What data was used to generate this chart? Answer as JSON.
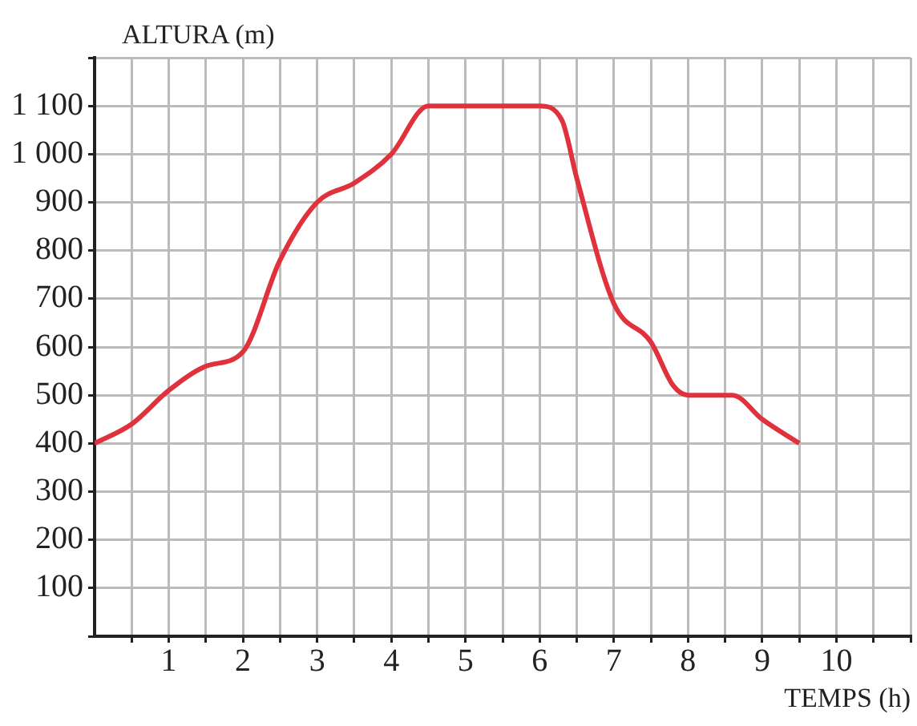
{
  "chart_data": {
    "type": "line",
    "ylabel": "ALTURA (m)",
    "xlabel": "TEMPS (h)",
    "x": [
      0,
      0.5,
      1,
      1.5,
      2,
      2.5,
      3,
      3.5,
      4,
      4.5,
      6,
      6.3,
      6.5,
      7,
      7.5,
      7.8,
      8,
      8.6,
      9,
      9.5
    ],
    "series": [
      {
        "color": "#e0323c",
        "values": [
          400,
          440,
          510,
          560,
          590,
          780,
          900,
          940,
          1000,
          1100,
          1100,
          1070,
          950,
          690,
          610,
          520,
          500,
          500,
          450,
          400
        ]
      }
    ],
    "xlim": [
      0,
      11
    ],
    "xticks": [
      {
        "value": 0.5,
        "label": null
      },
      1,
      {
        "value": 1.5,
        "label": null
      },
      2,
      {
        "value": 2.5,
        "label": null
      },
      3,
      {
        "value": 3.5,
        "label": null
      },
      4,
      {
        "value": 4.5,
        "label": null
      },
      5,
      {
        "value": 5.5,
        "label": null
      },
      6,
      {
        "value": 6.5,
        "label": null
      },
      7,
      {
        "value": 7.5,
        "label": null
      },
      8,
      {
        "value": 8.5,
        "label": null
      },
      9,
      {
        "value": 9.5,
        "label": null
      },
      10,
      {
        "value": 10.5,
        "label": null
      },
      {
        "value": 11,
        "label": null
      }
    ],
    "ylim": [
      0,
      1200
    ],
    "yticks": [
      {
        "value": 0,
        "label": null
      },
      100,
      200,
      300,
      400,
      500,
      600,
      700,
      800,
      900,
      {
        "value": 1000,
        "label": "1 000"
      },
      {
        "value": 1100,
        "label": "1 100"
      },
      {
        "value": 1200,
        "label": null
      }
    ],
    "grid": true,
    "legend": false,
    "marker": "none",
    "line_style": "solid"
  }
}
